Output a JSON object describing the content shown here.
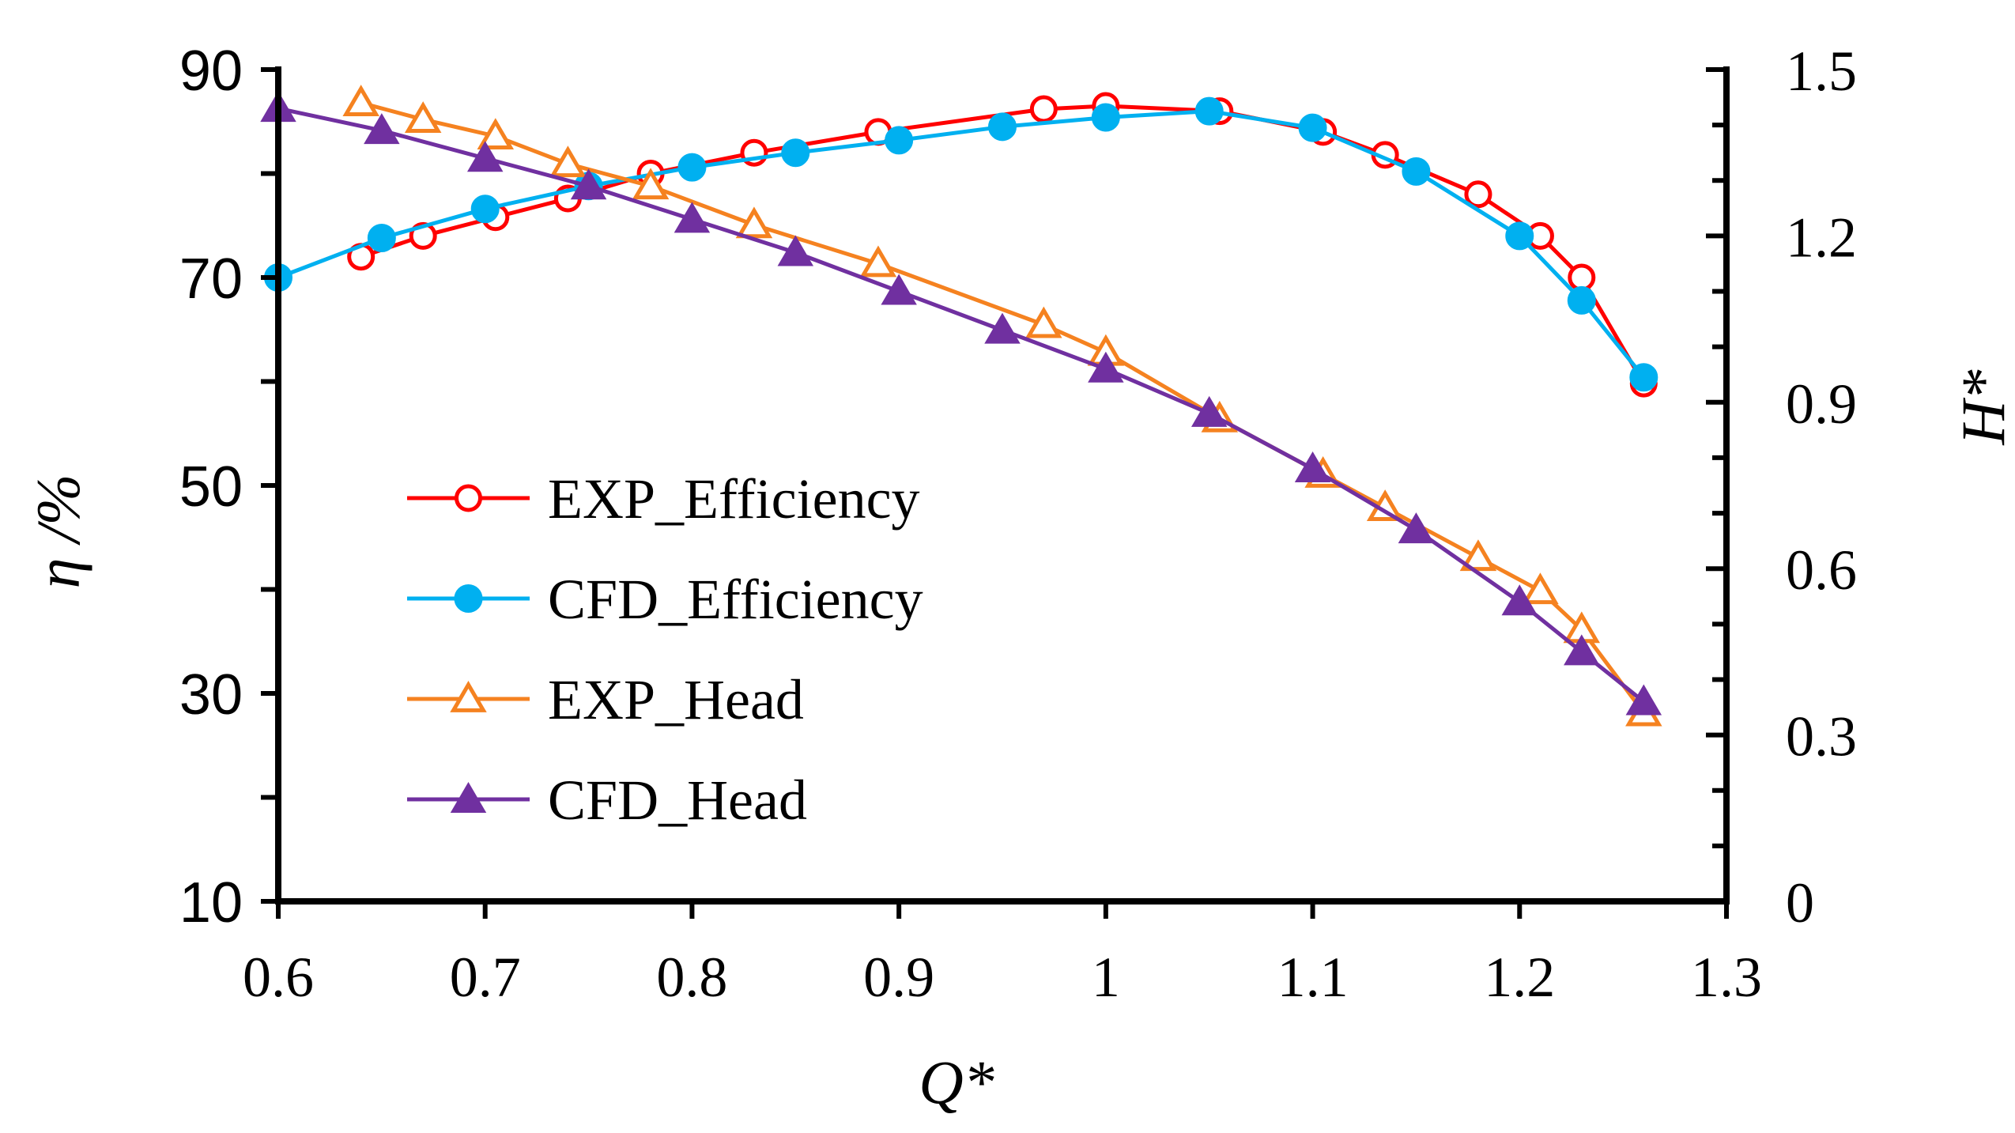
{
  "chart_data": {
    "type": "line",
    "title": "",
    "xlabel": "Q*",
    "ylabel_left": "η /%",
    "ylabel_right": "H*",
    "xlim": [
      0.6,
      1.3
    ],
    "ylim_left": [
      10,
      90
    ],
    "ylim_right": [
      0,
      1.5
    ],
    "x_ticks": [
      "0.6",
      "0.7",
      "0.8",
      "0.9",
      "1",
      "1.1",
      "1.2",
      "1.3"
    ],
    "y_left_ticks": [
      "10",
      "30",
      "50",
      "70",
      "90"
    ],
    "y_right_ticks": [
      "0",
      "0.3",
      "0.6",
      "0.9",
      "1.2",
      "1.5"
    ],
    "legend_position": "center-left",
    "series": [
      {
        "name": "EXP_Efficiency",
        "axis": "left",
        "color": "#ff0000",
        "marker": "circle-open",
        "x": [
          0.64,
          0.67,
          0.705,
          0.74,
          0.78,
          0.83,
          0.89,
          0.97,
          1.0,
          1.055,
          1.105,
          1.135,
          1.18,
          1.21,
          1.23,
          1.26
        ],
        "y": [
          72.0,
          74.0,
          75.8,
          77.6,
          80.0,
          82.0,
          84.0,
          86.2,
          86.5,
          86.0,
          84.0,
          81.8,
          78.0,
          74.0,
          70.0,
          59.8
        ]
      },
      {
        "name": "CFD_Efficiency",
        "axis": "left",
        "color": "#00b0f0",
        "marker": "circle-filled",
        "x": [
          0.6,
          0.65,
          0.7,
          0.75,
          0.8,
          0.85,
          0.9,
          0.95,
          1.0,
          1.05,
          1.1,
          1.15,
          1.2,
          1.23,
          1.26
        ],
        "y": [
          70.0,
          73.8,
          76.6,
          78.8,
          80.6,
          82.0,
          83.2,
          84.5,
          85.4,
          86.0,
          84.4,
          80.2,
          74.0,
          67.8,
          60.4
        ]
      },
      {
        "name": "EXP_Head",
        "axis": "right",
        "color": "#f58220",
        "marker": "triangle-open",
        "x": [
          0.64,
          0.67,
          0.705,
          0.74,
          0.78,
          0.83,
          0.89,
          0.97,
          1.0,
          1.055,
          1.105,
          1.135,
          1.18,
          1.21,
          1.23,
          1.26
        ],
        "y": [
          1.44,
          1.41,
          1.38,
          1.33,
          1.29,
          1.22,
          1.15,
          1.04,
          0.99,
          0.87,
          0.77,
          0.71,
          0.62,
          0.56,
          0.49,
          0.34
        ]
      },
      {
        "name": "CFD_Head",
        "axis": "right",
        "color": "#7030a0",
        "marker": "triangle-filled",
        "x": [
          0.6,
          0.65,
          0.7,
          0.75,
          0.8,
          0.85,
          0.9,
          0.95,
          1.0,
          1.05,
          1.1,
          1.15,
          1.2,
          1.23,
          1.26
        ],
        "y": [
          1.43,
          1.39,
          1.34,
          1.29,
          1.23,
          1.17,
          1.1,
          1.03,
          0.96,
          0.88,
          0.78,
          0.67,
          0.54,
          0.45,
          0.36
        ]
      }
    ]
  }
}
